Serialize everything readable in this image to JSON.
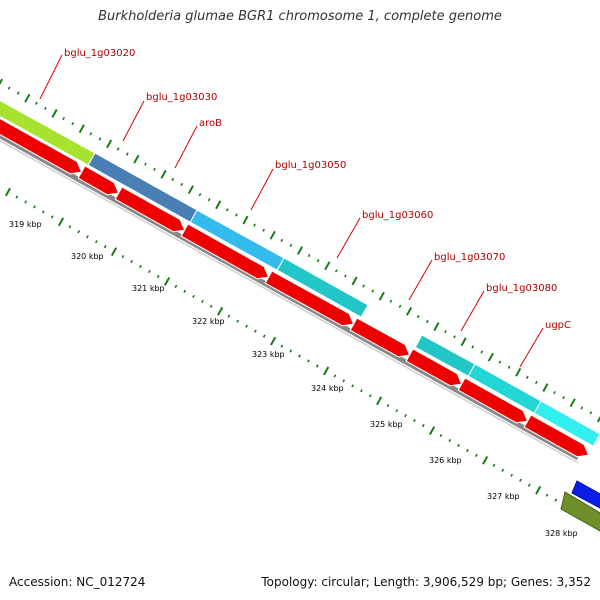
{
  "title": "Burkholderia glumae BGR1 chromosome 1, complete genome",
  "footer": {
    "accession": "Accession: NC_012724",
    "summary": "Topology: circular; Length: 3,906,529 bp; Genes: 3,352"
  },
  "gene_labels": [
    "bglu_1g03020",
    "bglu_1g03030",
    "aroB",
    "bglu_1g03050",
    "bglu_1g03060",
    "bglu_1g03070",
    "bglu_1g03080",
    "ugpC"
  ],
  "ticks": [
    "319 kbp",
    "320 kbp",
    "321 kbp",
    "322 kbp",
    "323 kbp",
    "324 kbp",
    "325 kbp",
    "326 kbp",
    "327 kbp",
    "328 kbp"
  ],
  "colors": {
    "cds": "#ee0000",
    "backbone": "#888888",
    "label_line": "#dd0000",
    "tick": "#1a7a1a",
    "genes": [
      "#a6e22e",
      "#4a7fb5",
      "#33bbee",
      "#22c6c6",
      "#22c6c6",
      "#22c6c6",
      "#22d6d6",
      "#33eeee"
    ]
  }
}
